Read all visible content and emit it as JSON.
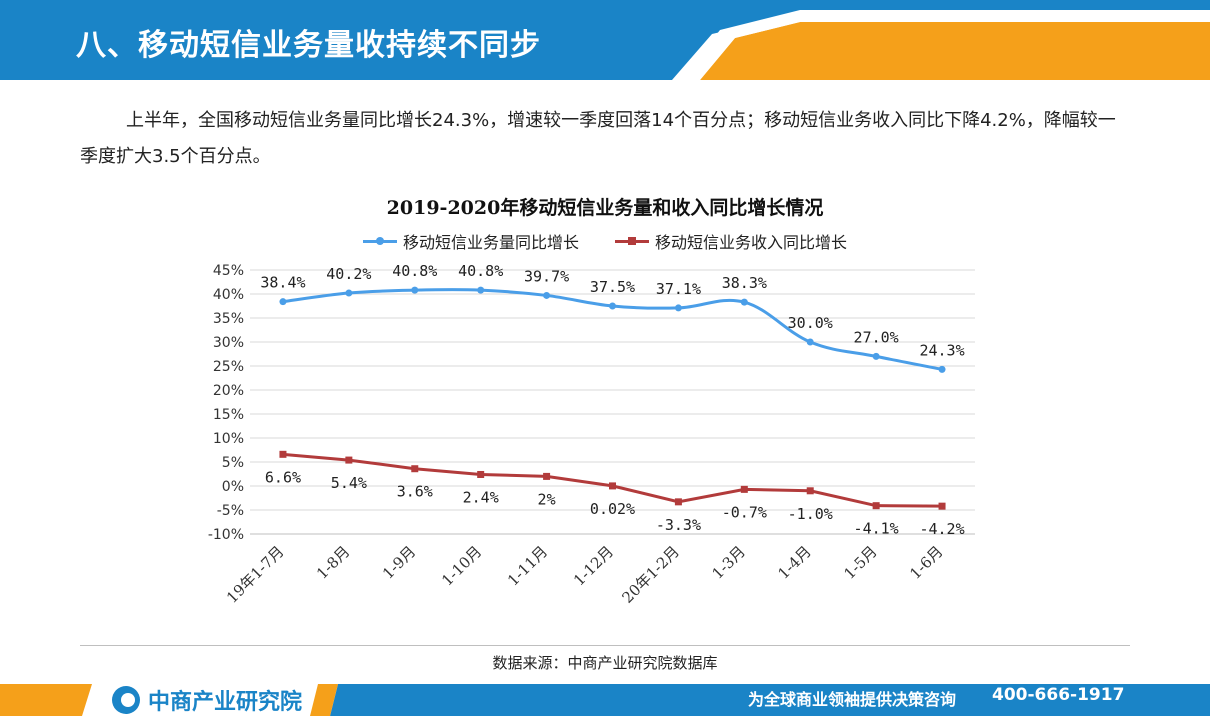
{
  "header": {
    "title": "八、移动短信业务量收持续不同步"
  },
  "intro": {
    "text": "上半年，全国移动短信业务量同比增长24.3%，增速较一季度回落14个百分点；移动短信业务收入同比下降4.2%，降幅较一季度扩大3.5个百分点。"
  },
  "chart_data": {
    "type": "line",
    "title": "2019-2020年移动短信业务量和收入同比增长情况",
    "xlabel": "",
    "ylabel": "",
    "categories": [
      "19年1-7月",
      "1-8月",
      "1-9月",
      "1-10月",
      "1-11月",
      "1-12月",
      "20年1-2月",
      "1-3月",
      "1-4月",
      "1-5月",
      "1-6月"
    ],
    "ylim": [
      -10,
      45
    ],
    "yticks": [
      -10,
      -5,
      0,
      5,
      10,
      15,
      20,
      25,
      30,
      35,
      40,
      45
    ],
    "ytick_labels": [
      "-10%",
      "-5%",
      "0%",
      "5%",
      "10%",
      "15%",
      "20%",
      "25%",
      "30%",
      "35%",
      "40%",
      "45%"
    ],
    "grid": true,
    "legend_position": "top",
    "series": [
      {
        "name": "移动短信业务量同比增长",
        "color": "#4a9ee8",
        "marker": "circle",
        "values": [
          38.4,
          40.2,
          40.8,
          40.8,
          39.7,
          37.5,
          37.1,
          38.3,
          30.0,
          27.0,
          24.3
        ],
        "labels": [
          "38.4%",
          "40.2%",
          "40.8%",
          "40.8%",
          "39.7%",
          "37.5%",
          "37.1%",
          "38.3%",
          "30.0%",
          "27.0%",
          "24.3%"
        ]
      },
      {
        "name": "移动短信业务收入同比增长",
        "color": "#b23b3b",
        "marker": "square",
        "values": [
          6.6,
          5.4,
          3.6,
          2.4,
          2,
          0.02,
          -3.3,
          -0.7,
          -1.0,
          -4.1,
          -4.2
        ],
        "labels": [
          "6.6%",
          "5.4%",
          "3.6%",
          "2.4%",
          "2%",
          "0.02%",
          "-3.3%",
          "-0.7%",
          "-1.0%",
          "-4.1%",
          "-4.2%"
        ]
      }
    ]
  },
  "source": {
    "text": "数据来源：中商产业研究院数据库"
  },
  "footer": {
    "logo_text": "中商产业研究院",
    "slogan": "为全球商业领袖提供决策咨询",
    "phone": "400-666-1917",
    "colors": {
      "blue": "#1a84c7",
      "orange": "#f5a01a"
    }
  }
}
